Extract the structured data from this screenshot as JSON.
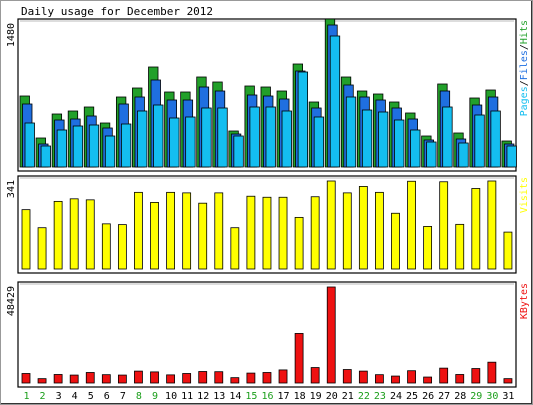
{
  "chart_data": {
    "type": "bar",
    "title": "Daily usage for December 2012",
    "categories": [
      "1",
      "2",
      "3",
      "4",
      "5",
      "6",
      "7",
      "8",
      "9",
      "10",
      "11",
      "12",
      "13",
      "14",
      "15",
      "16",
      "17",
      "18",
      "19",
      "20",
      "21",
      "22",
      "23",
      "24",
      "25",
      "26",
      "27",
      "28",
      "29",
      "30",
      "31"
    ],
    "weekend_days": [
      "1",
      "2",
      "8",
      "9",
      "15",
      "16",
      "22",
      "23",
      "29",
      "30"
    ],
    "colors": {
      "hits": "#22a02a",
      "files": "#1f6fe0",
      "pages": "#14bef0",
      "visits": "#ffff00",
      "kbytes": "#ee1111",
      "weekday_label": "#000000",
      "weekend_label": "#1a9e1a"
    },
    "panels": [
      {
        "id": "hits",
        "max_label": "1480",
        "legend": [
          {
            "name": "Pages",
            "color": "#14bef0"
          },
          {
            "name": "Files",
            "color": "#1f6fe0"
          },
          {
            "name": "Hits",
            "color": "#22a02a"
          }
        ],
        "ylim": [
          0,
          1480
        ],
        "series": [
          {
            "name": "Hits",
            "values": [
              710,
              290,
              530,
              560,
              600,
              440,
              700,
              790,
              1000,
              750,
              750,
              900,
              850,
              360,
              810,
              800,
              760,
              1030,
              650,
              1480,
              900,
              760,
              730,
              650,
              540,
              310,
              830,
              340,
              690,
              770,
              260
            ]
          },
          {
            "name": "Files",
            "values": [
              630,
              230,
              470,
              480,
              510,
              390,
              630,
              700,
              870,
              670,
              670,
              800,
              760,
              330,
              720,
              710,
              680,
              960,
              590,
              1420,
              820,
              700,
              670,
              590,
              480,
              270,
              760,
              280,
              620,
              700,
              230
            ]
          },
          {
            "name": "Pages",
            "values": [
              440,
              210,
              370,
              410,
              420,
              310,
              430,
              560,
              620,
              490,
              500,
              590,
              590,
              310,
              600,
              600,
              560,
              950,
              500,
              1310,
              700,
              570,
              550,
              470,
              370,
              250,
              600,
              240,
              520,
              560,
              210
            ]
          }
        ]
      },
      {
        "id": "visits",
        "max_label": "341",
        "legend": [
          {
            "name": "Visits",
            "color": "#ffff00"
          }
        ],
        "ylim": [
          0,
          341
        ],
        "series": [
          {
            "name": "Visits",
            "values": [
              230,
              160,
              262,
              272,
              268,
              175,
              172,
              297,
              258,
              297,
              295,
              255,
              295,
              160,
              282,
              278,
              278,
              200,
              280,
              341,
              295,
              320,
              297,
              216,
              340,
              165,
              338,
              173,
              312,
              341,
              143
            ]
          }
        ]
      },
      {
        "id": "kbytes",
        "max_label": "48429",
        "legend": [
          {
            "name": "KBytes",
            "color": "#ee1111"
          }
        ],
        "ylim": [
          0,
          48429
        ],
        "series": [
          {
            "name": "KBytes",
            "values": [
              4800,
              2200,
              4300,
              4000,
              5300,
              4200,
              4000,
              6000,
              5600,
              4100,
              4800,
              5800,
              5700,
              2700,
              5000,
              5300,
              6600,
              25000,
              7800,
              48429,
              6800,
              6000,
              4200,
              3500,
              6200,
              3000,
              7500,
              4300,
              7300,
              10500,
              2200
            ]
          }
        ]
      }
    ]
  }
}
